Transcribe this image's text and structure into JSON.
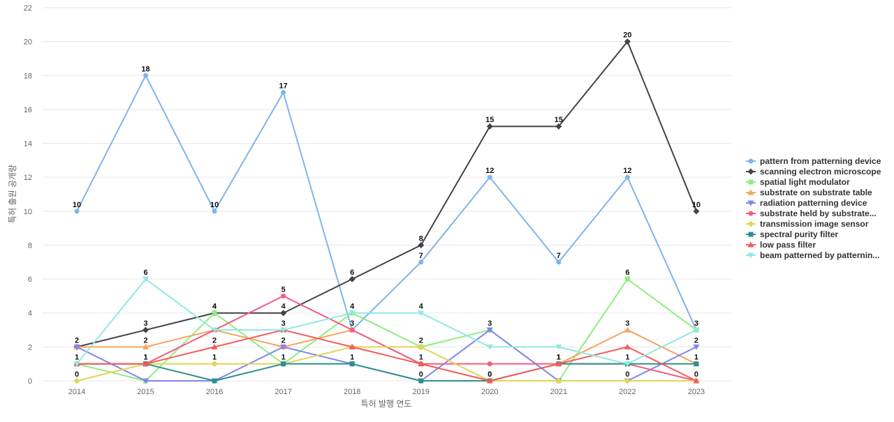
{
  "chart_data": {
    "type": "line",
    "title": "",
    "xlabel": "특허 발행 연도",
    "ylabel": "특허 출원 공개량",
    "categories": [
      "2014",
      "2015",
      "2016",
      "2017",
      "2018",
      "2019",
      "2020",
      "2021",
      "2022",
      "2023"
    ],
    "ylim": [
      0,
      22
    ],
    "yticks": [
      "0",
      "2",
      "4",
      "6",
      "8",
      "10",
      "12",
      "14",
      "16",
      "18",
      "20",
      "22"
    ],
    "grid": true,
    "legend_position": "right",
    "series": [
      {
        "name": "pattern from patterning device",
        "color": "#7cb5ec",
        "marker": "circle",
        "values": [
          10,
          18,
          10,
          17,
          3,
          7,
          12,
          7,
          12,
          3
        ]
      },
      {
        "name": "scanning electron microscope",
        "color": "#434348",
        "marker": "diamond",
        "values": [
          2,
          3,
          4,
          4,
          6,
          8,
          15,
          15,
          20,
          10
        ]
      },
      {
        "name": "spatial light modulator",
        "color": "#90ed7d",
        "marker": "square",
        "values": [
          1,
          0,
          4,
          1,
          4,
          2,
          3,
          0,
          6,
          3
        ]
      },
      {
        "name": "substrate on substrate table",
        "color": "#f7a35c",
        "marker": "triangle",
        "values": [
          2,
          2,
          3,
          2,
          3,
          1,
          0,
          1,
          3,
          1
        ]
      },
      {
        "name": "radiation patterning device",
        "color": "#8085e9",
        "marker": "triangle-down",
        "values": [
          2,
          0,
          0,
          2,
          1,
          0,
          3,
          0,
          0,
          2
        ]
      },
      {
        "name": "substrate held by substrate...",
        "color": "#f15c80",
        "marker": "circle",
        "values": [
          1,
          1,
          3,
          5,
          3,
          1,
          1,
          1,
          1,
          0
        ]
      },
      {
        "name": "transmission image sensor",
        "color": "#e4d354",
        "marker": "diamond",
        "values": [
          0,
          1,
          1,
          1,
          2,
          2,
          0,
          0,
          0,
          0
        ]
      },
      {
        "name": "spectral purity filter",
        "color": "#2b908f",
        "marker": "square",
        "values": [
          1,
          1,
          0,
          1,
          1,
          0,
          0,
          1,
          1,
          1
        ]
      },
      {
        "name": "low pass filter",
        "color": "#f45b5b",
        "marker": "triangle",
        "values": [
          1,
          1,
          2,
          3,
          2,
          1,
          0,
          1,
          2,
          0
        ]
      },
      {
        "name": "beam patterned by patternin...",
        "color": "#91e8e1",
        "marker": "triangle-down",
        "values": [
          1,
          6,
          3,
          3,
          4,
          4,
          2,
          2,
          1,
          3
        ]
      }
    ],
    "data_labels": [
      {
        "series": 0,
        "points": [
          0,
          1,
          2,
          3,
          5,
          6,
          7,
          8
        ]
      },
      {
        "series": 1,
        "points": [
          1,
          2,
          3,
          4,
          5,
          6,
          7,
          8,
          9
        ]
      },
      {
        "series": 9,
        "points": [
          1,
          5
        ]
      },
      {
        "series": 5,
        "points": [
          3
        ]
      },
      {
        "series": 2,
        "points": [
          2,
          4,
          8,
          9
        ]
      },
      {
        "series": 8,
        "points": [
          2,
          3,
          7
        ]
      },
      {
        "series": 3,
        "points": [
          0,
          1,
          3,
          4,
          5,
          8
        ]
      },
      {
        "series": 4,
        "points": [
          6,
          9
        ]
      },
      {
        "series": 7,
        "points": [
          0,
          1,
          3,
          4,
          5,
          6,
          7,
          8,
          9
        ]
      },
      {
        "series": 6,
        "points": [
          0,
          1,
          2,
          5,
          6,
          8,
          9
        ]
      }
    ]
  }
}
